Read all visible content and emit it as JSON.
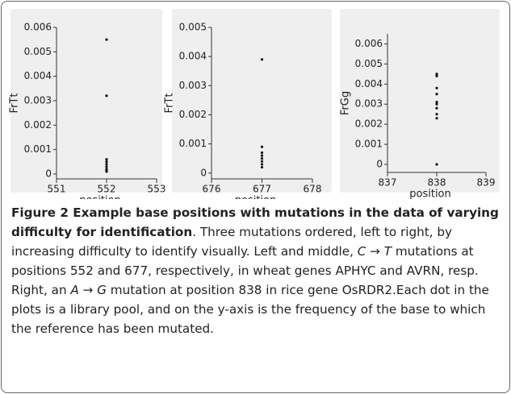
{
  "chart_data": [
    {
      "type": "scatter",
      "xlabel": "position",
      "ylabel": "FrTt",
      "x": [
        552,
        552,
        552,
        552,
        552,
        552,
        552,
        552,
        552
      ],
      "y": [
        0.0055,
        0.0032,
        0.0006,
        0.0005,
        0.0004,
        0.0003,
        0.0002,
        0.00015,
        0.0001
      ],
      "xlim": [
        551,
        553
      ],
      "xticks": [
        551,
        552,
        553
      ],
      "ylim": [
        -0.0002,
        0.006
      ],
      "yticks": [
        0,
        0.001,
        0.002,
        0.003,
        0.004,
        0.005,
        0.006
      ],
      "color": "#111111"
    },
    {
      "type": "scatter",
      "xlabel": "position",
      "ylabel": "FrTt",
      "x": [
        677,
        677,
        677,
        677,
        677,
        677,
        677,
        677
      ],
      "y": [
        0.0039,
        0.0009,
        0.0007,
        0.0006,
        0.0005,
        0.0004,
        0.0003,
        0.0002
      ],
      "xlim": [
        676,
        678
      ],
      "xticks": [
        676,
        677,
        678
      ],
      "ylim": [
        -0.0002,
        0.005
      ],
      "yticks": [
        0,
        0.001,
        0.002,
        0.003,
        0.004,
        0.005
      ],
      "color": "#111111"
    },
    {
      "type": "scatter",
      "xlabel": "position",
      "ylabel": "FrGg",
      "x": [
        838,
        838,
        838,
        838,
        838,
        838,
        838,
        838,
        838,
        838
      ],
      "y": [
        0.0045,
        0.0044,
        0.0038,
        0.0035,
        0.0031,
        0.003,
        0.0028,
        0.0025,
        0.0023,
        0
      ],
      "xlim": [
        837,
        839
      ],
      "xticks": [
        837,
        838,
        839
      ],
      "ylim": [
        -0.0004,
        0.0065
      ],
      "yticks": [
        0,
        0.001,
        0.002,
        0.003,
        0.004,
        0.005,
        0.006
      ],
      "color": "#111111"
    }
  ],
  "caption": [
    {
      "text": "Figure 2 Example base positions with mutations in the data of varying difficulty for identification",
      "style": "bold"
    },
    {
      "text": ". Three mutations ordered, left to right, by increasing difficulty to identify visually. Left and middle, ",
      "style": "normal"
    },
    {
      "text": "C → T",
      "style": "italic"
    },
    {
      "text": " mutations at positions 552 and 677, respectively, in wheat genes APHYC and AVRN, resp. Right, an ",
      "style": "normal"
    },
    {
      "text": "A → G",
      "style": "italic"
    },
    {
      "text": " mutation at position 838 in rice gene OsRDR2.Each dot in the plots is a library pool, and on the y-axis is the frequency of the base to which the reference has been mutated.",
      "style": "normal"
    }
  ]
}
